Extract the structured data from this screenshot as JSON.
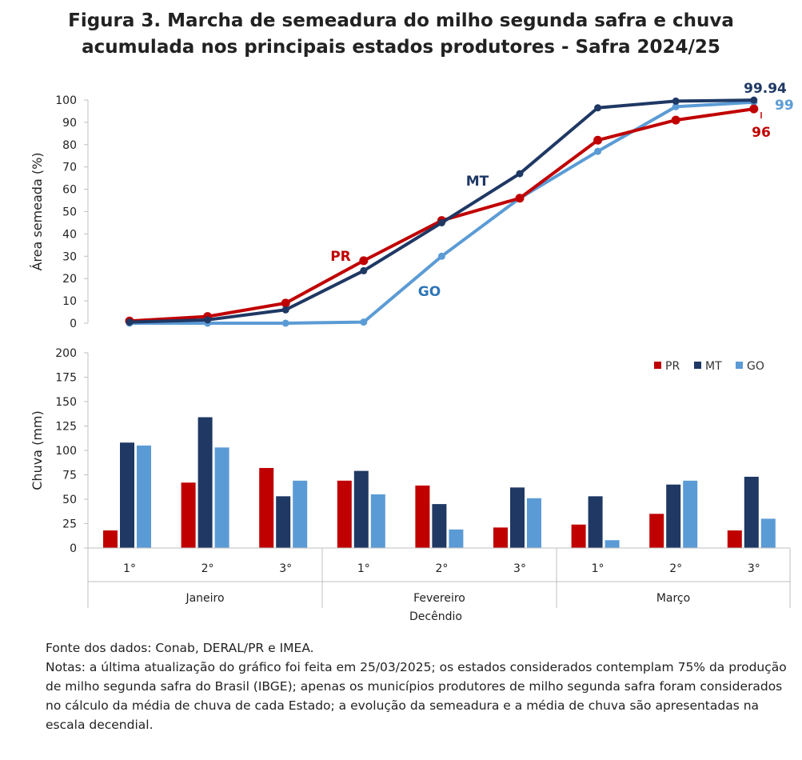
{
  "title": {
    "line1": "Figura 3. Marcha de semeadura do milho segunda safra e chuva",
    "line2": "acumulada nos principais estados produtores - Safra 2024/25"
  },
  "colors": {
    "PR": "#c00000",
    "MT": "#1f3864",
    "GO": "#5b9bd5"
  },
  "chart_data": [
    {
      "type": "line",
      "ylabel": "Área semeada (%)",
      "ylim": [
        0,
        100
      ],
      "yticks": [
        0,
        10,
        20,
        30,
        40,
        50,
        60,
        70,
        80,
        90,
        100
      ],
      "categories": [
        "Jan 1°",
        "Jan 2°",
        "Jan 3°",
        "Fev 1°",
        "Fev 2°",
        "Fev 3°",
        "Mar 1°",
        "Mar 2°",
        "Mar 3°"
      ],
      "series": [
        {
          "name": "PR",
          "values": [
            1,
            3,
            9,
            28,
            46,
            56,
            82,
            91,
            96
          ]
        },
        {
          "name": "MT",
          "values": [
            0.5,
            1.5,
            6,
            23.5,
            45,
            67,
            96.5,
            99.5,
            99.94
          ]
        },
        {
          "name": "GO",
          "values": [
            0,
            0,
            0,
            0.5,
            30,
            56,
            77,
            97,
            99
          ]
        }
      ],
      "annotations": {
        "PR": "PR",
        "MT": "MT",
        "GO": "GO",
        "end_MT": "99.94",
        "end_GO": "99",
        "end_PR": "96"
      },
      "grid": false
    },
    {
      "type": "bar",
      "ylabel": "Chuva (mm)",
      "xlabel": "Decêndio",
      "ylim": [
        0,
        200
      ],
      "yticks": [
        0,
        25,
        50,
        75,
        100,
        125,
        150,
        175,
        200
      ],
      "decendios": [
        "1°",
        "2°",
        "3°",
        "1°",
        "2°",
        "3°",
        "1°",
        "2°",
        "3°"
      ],
      "months": [
        "Janeiro",
        "Fevereiro",
        "Março"
      ],
      "series": [
        {
          "name": "PR",
          "values": [
            18,
            67,
            82,
            69,
            64,
            21,
            24,
            35,
            18
          ]
        },
        {
          "name": "MT",
          "values": [
            108,
            134,
            53,
            79,
            45,
            62,
            53,
            65,
            73
          ]
        },
        {
          "name": "GO",
          "values": [
            105,
            103,
            69,
            55,
            19,
            51,
            8,
            69,
            30
          ]
        }
      ],
      "legend": {
        "position": "top-right",
        "items": [
          "PR",
          "MT",
          "GO"
        ]
      },
      "grid": false
    }
  ],
  "notes": {
    "source": "Fonte dos dados: Conab, DERAL/PR e IMEA.",
    "text": "Notas: a última atualização do gráfico foi feita em 25/03/2025; os estados considerados contemplam 75% da produção de milho segunda safra do Brasil (IBGE); apenas os municípios produtores de milho segunda safra foram considerados no cálculo da média de chuva de cada Estado; a evolução da semeadura e a média de chuva são apresentadas na escala decendial."
  }
}
